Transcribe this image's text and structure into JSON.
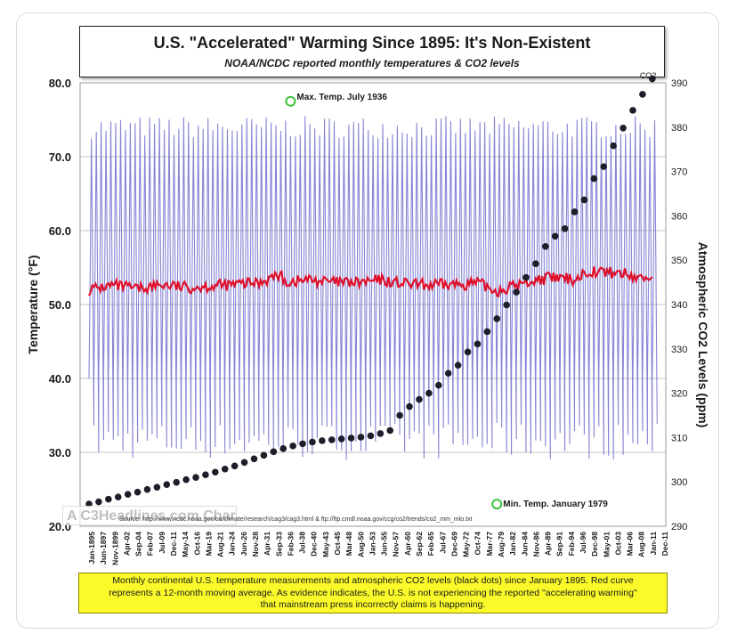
{
  "header": {
    "title": "U.S. \"Accelerated\" Warming Since 1895: It's Non-Existent",
    "subtitle": "NOAA/NCDC reported monthly temperatures & CO2 levels"
  },
  "watermark": "A C3Headlines.com Chart",
  "source": "Source: http://www.ncdc.noaa.gov/oa/climate/research/cag3/cag3.html & ftp://ftp.cmdl.noaa.gov/ccg/co2/trends/co2_mm_mlo.txt",
  "caption": {
    "line1": "Monthly continental U.S. temperature measurements and atmospheric CO2 levels (black dots) since January 1895. Red curve",
    "line2": "represents a 12-month moving average. As evidence indicates, the U.S. is not experiencing the reported \"accelerating warming\"",
    "line3": "that mainstream press incorrectly claims is happening."
  },
  "colors": {
    "monthly": "#7878d2",
    "moving_average": "#e0102a",
    "co2": "#1e1e2a",
    "highlight": "#3ec43e",
    "caption_bg": "#fafa2a"
  },
  "chart_data": {
    "type": "line",
    "ylabel": "Temperature (°F)",
    "y2label": "Atmospheric CO2 Levels (ppm)",
    "ylim": [
      20,
      80
    ],
    "y2lim": [
      290,
      390
    ],
    "yticks": [
      "80.0",
      "70.0",
      "60.0",
      "50.0",
      "40.0",
      "30.0",
      "20.0"
    ],
    "y2ticks": [
      "390",
      "380",
      "370",
      "360",
      "350",
      "340",
      "330",
      "320",
      "310",
      "300",
      "290"
    ],
    "xlim": [
      1895,
      2011.95
    ],
    "x_tick_labels": [
      "Jan-1895",
      "Jun-1897",
      "Nov-1899",
      "Apr-02",
      "Sep-04",
      "Feb-07",
      "Jul-09",
      "Dec-11",
      "May-14",
      "Oct-16",
      "Mar-19",
      "Aug-21",
      "Jan-24",
      "Jun-26",
      "Nov-28",
      "Apr-31",
      "Sep-33",
      "Feb-36",
      "Jul-38",
      "Dec-40",
      "May-43",
      "Oct-45",
      "Mar-48",
      "Aug-50",
      "Jan-53",
      "Jun-55",
      "Nov-57",
      "Apr-60",
      "Sep-62",
      "Feb-65",
      "Jul-67",
      "Dec-69",
      "May-72",
      "Oct-74",
      "Mar-77",
      "Aug-79",
      "Jan-82",
      "Jun-84",
      "Nov-86",
      "Apr-89",
      "Sep-91",
      "Feb-94",
      "Jul-96",
      "Dec-98",
      "May-01",
      "Oct-03",
      "Mar-06",
      "Aug-08",
      "Jan-11",
      "Dec-11"
    ],
    "annotations": [
      {
        "text": "Max. Temp. July 1936",
        "x": 1936.5,
        "y": 77.5
      },
      {
        "text": "Min. Temp. January 1979",
        "x": 1979.0,
        "y": 23.0
      },
      {
        "text": "CO2",
        "x": 2011.0,
        "y2": 391
      }
    ],
    "series": [
      {
        "name": "",
        "kind": "monthly",
        "note": "monthly temperatures oscillating roughly between 27 and 76 °F"
      },
      {
        "name": "",
        "kind": "moving_average",
        "points": [
          [
            1895,
            52.0
          ],
          [
            1900,
            52.6
          ],
          [
            1905,
            52.1
          ],
          [
            1910,
            52.7
          ],
          [
            1915,
            52.3
          ],
          [
            1920,
            52.5
          ],
          [
            1925,
            52.7
          ],
          [
            1930,
            53.0
          ],
          [
            1934,
            54.0
          ],
          [
            1936,
            53.0
          ],
          [
            1940,
            53.4
          ],
          [
            1945,
            53.0
          ],
          [
            1950,
            52.9
          ],
          [
            1955,
            53.3
          ],
          [
            1960,
            52.8
          ],
          [
            1965,
            52.6
          ],
          [
            1970,
            52.7
          ],
          [
            1975,
            52.9
          ],
          [
            1979,
            51.8
          ],
          [
            1983,
            52.6
          ],
          [
            1987,
            53.3
          ],
          [
            1990,
            53.6
          ],
          [
            1995,
            53.4
          ],
          [
            1998,
            54.6
          ],
          [
            2000,
            54.4
          ],
          [
            2005,
            54.2
          ],
          [
            2008,
            53.6
          ],
          [
            2011,
            53.7
          ]
        ]
      },
      {
        "name": "",
        "kind": "co2",
        "points": [
          [
            1895,
            295.0
          ],
          [
            1897,
            295.5
          ],
          [
            1899,
            296.1
          ],
          [
            1901,
            296.6
          ],
          [
            1903,
            297.2
          ],
          [
            1905,
            297.7
          ],
          [
            1907,
            298.3
          ],
          [
            1909,
            298.8
          ],
          [
            1911,
            299.4
          ],
          [
            1913,
            299.9
          ],
          [
            1915,
            300.5
          ],
          [
            1917,
            301.0
          ],
          [
            1919,
            301.6
          ],
          [
            1921,
            302.2
          ],
          [
            1923,
            302.9
          ],
          [
            1925,
            303.6
          ],
          [
            1927,
            304.4
          ],
          [
            1929,
            305.2
          ],
          [
            1931,
            306.0
          ],
          [
            1933,
            306.8
          ],
          [
            1935,
            307.5
          ],
          [
            1937,
            308.1
          ],
          [
            1939,
            308.6
          ],
          [
            1941,
            309.0
          ],
          [
            1943,
            309.3
          ],
          [
            1945,
            309.5
          ],
          [
            1947,
            309.7
          ],
          [
            1949,
            309.9
          ],
          [
            1951,
            310.1
          ],
          [
            1953,
            310.4
          ],
          [
            1955,
            310.9
          ],
          [
            1957,
            311.6
          ],
          [
            1959,
            315.0
          ],
          [
            1961,
            317.0
          ],
          [
            1963,
            318.6
          ],
          [
            1965,
            320.0
          ],
          [
            1967,
            321.8
          ],
          [
            1969,
            324.5
          ],
          [
            1971,
            326.3
          ],
          [
            1973,
            329.3
          ],
          [
            1975,
            331.1
          ],
          [
            1977,
            333.9
          ],
          [
            1979,
            336.8
          ],
          [
            1981,
            339.9
          ],
          [
            1983,
            342.8
          ],
          [
            1985,
            346.1
          ],
          [
            1987,
            349.2
          ],
          [
            1989,
            353.1
          ],
          [
            1991,
            355.4
          ],
          [
            1993,
            357.1
          ],
          [
            1995,
            360.9
          ],
          [
            1997,
            363.6
          ],
          [
            1999,
            368.4
          ],
          [
            2001,
            371.1
          ],
          [
            2003,
            375.8
          ],
          [
            2005,
            379.8
          ],
          [
            2007,
            383.8
          ],
          [
            2009,
            387.4
          ],
          [
            2011,
            390.9
          ]
        ]
      }
    ]
  }
}
